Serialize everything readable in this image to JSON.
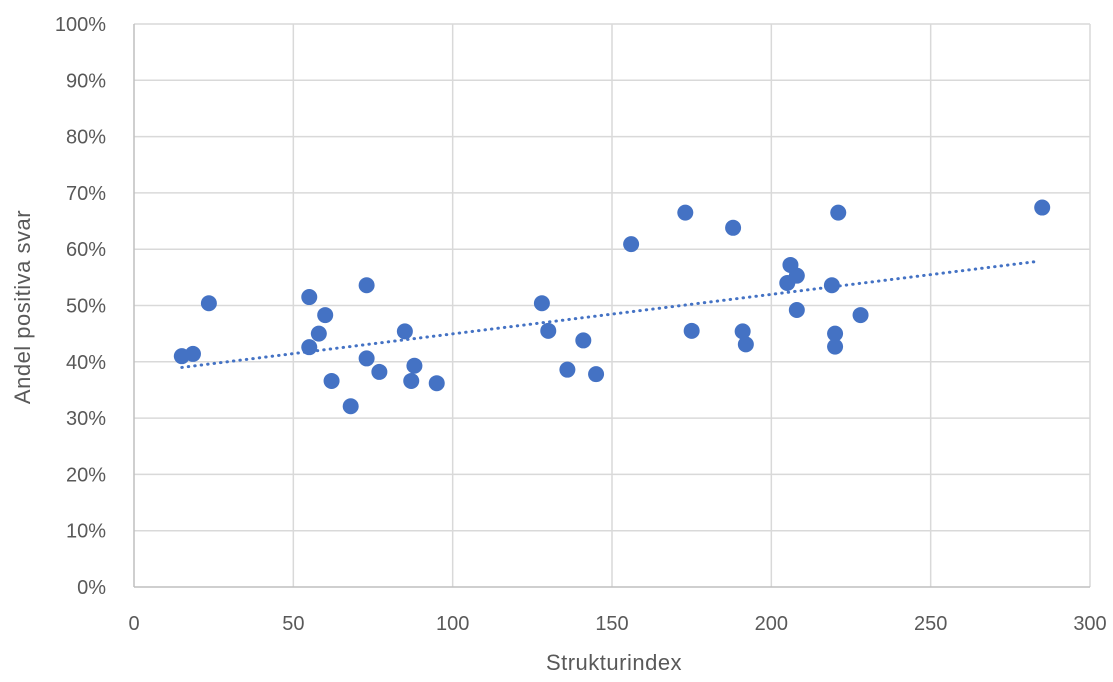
{
  "chart_data": {
    "type": "scatter",
    "title": "",
    "xlabel": "Strukturindex",
    "ylabel": "Andel positiva svar",
    "xlim": [
      0,
      300
    ],
    "ylim": [
      0,
      1
    ],
    "x_ticks": [
      "0",
      "50",
      "100",
      "150",
      "200",
      "250",
      "300"
    ],
    "y_ticks": [
      "0%",
      "10%",
      "20%",
      "30%",
      "40%",
      "50%",
      "60%",
      "70%",
      "80%",
      "90%",
      "100%"
    ],
    "grid": true,
    "legend": "none",
    "trendline": {
      "type": "linear",
      "style": "dotted",
      "x_start": 15,
      "y_start": 0.39,
      "x_end": 283,
      "y_end": 0.578
    },
    "points": [
      {
        "x": 15,
        "y": 0.41
      },
      {
        "x": 18.5,
        "y": 0.414
      },
      {
        "x": 23.5,
        "y": 0.504
      },
      {
        "x": 55,
        "y": 0.515
      },
      {
        "x": 55,
        "y": 0.426
      },
      {
        "x": 58,
        "y": 0.45
      },
      {
        "x": 60,
        "y": 0.483
      },
      {
        "x": 62,
        "y": 0.366
      },
      {
        "x": 68,
        "y": 0.321
      },
      {
        "x": 73,
        "y": 0.536
      },
      {
        "x": 73,
        "y": 0.406
      },
      {
        "x": 77,
        "y": 0.382
      },
      {
        "x": 85,
        "y": 0.454
      },
      {
        "x": 87,
        "y": 0.366
      },
      {
        "x": 88,
        "y": 0.393
      },
      {
        "x": 95,
        "y": 0.362
      },
      {
        "x": 128,
        "y": 0.504
      },
      {
        "x": 130,
        "y": 0.455
      },
      {
        "x": 136,
        "y": 0.386
      },
      {
        "x": 141,
        "y": 0.438
      },
      {
        "x": 145,
        "y": 0.378
      },
      {
        "x": 156,
        "y": 0.609
      },
      {
        "x": 173,
        "y": 0.665
      },
      {
        "x": 175,
        "y": 0.455
      },
      {
        "x": 188,
        "y": 0.638
      },
      {
        "x": 191,
        "y": 0.454
      },
      {
        "x": 192,
        "y": 0.431
      },
      {
        "x": 205,
        "y": 0.54
      },
      {
        "x": 206,
        "y": 0.572
      },
      {
        "x": 208,
        "y": 0.553
      },
      {
        "x": 208,
        "y": 0.492
      },
      {
        "x": 219,
        "y": 0.536
      },
      {
        "x": 220,
        "y": 0.45
      },
      {
        "x": 220,
        "y": 0.427
      },
      {
        "x": 221,
        "y": 0.665
      },
      {
        "x": 228,
        "y": 0.483
      },
      {
        "x": 285,
        "y": 0.674
      }
    ],
    "colors": {
      "marker": "#4472c4",
      "trendline": "#4472c4",
      "grid": "#d9d9d9",
      "axis": "#bfbfbf",
      "text": "#595959"
    }
  }
}
